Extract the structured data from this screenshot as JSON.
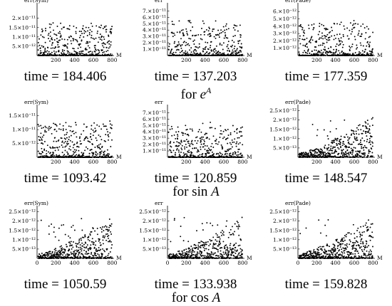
{
  "rows": [
    {
      "caption": {
        "prefix": "for ",
        "func": "e",
        "sup": "A"
      },
      "times": [
        "time = 184.406",
        "time = 137.203",
        "time = 177.359"
      ]
    },
    {
      "caption": {
        "prefix": "for  sin ",
        "func": "A",
        "sup": ""
      },
      "times": [
        "time = 1093.42",
        "time = 120.859",
        "time = 148.547"
      ]
    },
    {
      "caption": {
        "prefix": "for  cos ",
        "func": "A",
        "sup": ""
      },
      "times": [
        "time = 1050.59",
        "time = 133.938",
        "time = 159.828"
      ]
    }
  ],
  "chart_data": [
    {
      "type": "scatter",
      "ylabel": "err(Sym)",
      "xlabel": "M",
      "xlim": [
        0,
        820
      ],
      "xticks": [
        "200",
        "400",
        "600",
        "800"
      ],
      "ylim": [
        0,
        2.6e-11
      ],
      "yticks": [
        {
          "v": 5e-12,
          "label": "5.×10⁻¹²"
        },
        {
          "v": 1e-11,
          "label": "1.×10⁻¹¹"
        },
        {
          "v": 1.5e-11,
          "label": "1.5×10⁻¹¹"
        },
        {
          "v": 2e-11,
          "label": "2.×10⁻¹¹"
        }
      ],
      "pattern": "flat",
      "scale": 1.6e-11,
      "seed": 11
    },
    {
      "type": "scatter",
      "ylabel": "err",
      "xlabel": "M",
      "xlim": [
        0,
        820
      ],
      "xticks": [
        "200",
        "400",
        "600",
        "800"
      ],
      "ylim": [
        0,
        7.6e-11
      ],
      "yticks": [
        {
          "v": 1e-11,
          "label": "1.×10⁻¹¹"
        },
        {
          "v": 2e-11,
          "label": "2.×10⁻¹¹"
        },
        {
          "v": 3e-11,
          "label": "3.×10⁻¹¹"
        },
        {
          "v": 4e-11,
          "label": "4.×10⁻¹¹"
        },
        {
          "v": 5e-11,
          "label": "5.×10⁻¹¹"
        },
        {
          "v": 6e-11,
          "label": "6.×10⁻¹¹"
        },
        {
          "v": 7e-11,
          "label": "7.×10⁻¹¹"
        }
      ],
      "pattern": "flat",
      "scale": 5e-11,
      "seed": 23
    },
    {
      "type": "scatter",
      "ylabel": "err(Pade)",
      "xlabel": "M",
      "xlim": [
        0,
        820
      ],
      "xticks": [
        "200",
        "400",
        "600",
        "800"
      ],
      "ylim": [
        0,
        6.6e-12
      ],
      "yticks": [
        {
          "v": 1e-12,
          "label": "1.×10⁻¹²"
        },
        {
          "v": 2e-12,
          "label": "2.×10⁻¹²"
        },
        {
          "v": 3e-12,
          "label": "3.×10⁻¹²"
        },
        {
          "v": 4e-12,
          "label": "4.×10⁻¹²"
        },
        {
          "v": 5e-12,
          "label": "5.×10⁻¹²"
        },
        {
          "v": 6e-12,
          "label": "6.×10⁻¹²"
        }
      ],
      "pattern": "flat",
      "scale": 4.5e-12,
      "seed": 37
    },
    {
      "type": "scatter",
      "ylabel": "err(Sym)",
      "xlabel": "M",
      "xlim": [
        0,
        820
      ],
      "xticks": [
        "200",
        "400",
        "600",
        "800"
      ],
      "ylim": [
        0,
        1.75e-11
      ],
      "yticks": [
        {
          "v": 5e-12,
          "label": "5.×10⁻¹²"
        },
        {
          "v": 1e-11,
          "label": "1.×10⁻¹¹"
        },
        {
          "v": 1.5e-11,
          "label": "1.5×10⁻¹¹"
        }
      ],
      "pattern": "flat",
      "scale": 1.2e-11,
      "seed": 41
    },
    {
      "type": "scatter",
      "ylabel": "err",
      "xlabel": "M",
      "xlim": [
        0,
        820
      ],
      "xticks": [
        "200",
        "400",
        "600",
        "800"
      ],
      "ylim": [
        0,
        7.6e-11
      ],
      "yticks": [
        {
          "v": 1e-11,
          "label": "1.×10⁻¹¹"
        },
        {
          "v": 2e-11,
          "label": "2.×10⁻¹¹"
        },
        {
          "v": 3e-11,
          "label": "3.×10⁻¹¹"
        },
        {
          "v": 4e-11,
          "label": "4.×10⁻¹¹"
        },
        {
          "v": 5e-11,
          "label": "5.×10⁻¹¹"
        },
        {
          "v": 6e-11,
          "label": "6.×10⁻¹¹"
        },
        {
          "v": 7e-11,
          "label": "7.×10⁻¹¹"
        }
      ],
      "pattern": "flat",
      "scale": 5e-11,
      "seed": 53
    },
    {
      "type": "scatter",
      "ylabel": "err(Pade)",
      "xlabel": "M",
      "xlim": [
        0,
        820
      ],
      "xticks": [
        "200",
        "400",
        "600",
        "800"
      ],
      "ylim": [
        0,
        2.6e-12
      ],
      "yticks": [
        {
          "v": 5e-13,
          "label": "5.×10⁻¹³"
        },
        {
          "v": 1e-12,
          "label": "1.×10⁻¹²"
        },
        {
          "v": 1.5e-12,
          "label": "1.5×10⁻¹²"
        },
        {
          "v": 2e-12,
          "label": "2.×10⁻¹²"
        },
        {
          "v": 2.5e-12,
          "label": "2.5×10⁻¹²"
        }
      ],
      "pattern": "growing",
      "scale": 2.2e-12,
      "seed": 61
    },
    {
      "type": "scatter",
      "ylabel": "err(Sym)",
      "xlabel": "M",
      "xlim": [
        0,
        820
      ],
      "xticks": [
        "0",
        "200",
        "400",
        "600",
        "800"
      ],
      "ylim": [
        0,
        2.6e-12
      ],
      "yticks": [
        {
          "v": 5e-13,
          "label": "5.×10⁻¹³"
        },
        {
          "v": 1e-12,
          "label": "1.×10⁻¹²"
        },
        {
          "v": 1.5e-12,
          "label": "1.5×10⁻¹²"
        },
        {
          "v": 2e-12,
          "label": "2.×10⁻¹²"
        },
        {
          "v": 2.5e-12,
          "label": "2.5×10⁻¹²"
        }
      ],
      "pattern": "growing",
      "scale": 2.2e-12,
      "seed": 71
    },
    {
      "type": "scatter",
      "ylabel": "err",
      "xlabel": "M",
      "xlim": [
        0,
        820
      ],
      "xticks": [
        "0",
        "200",
        "400",
        "600",
        "800"
      ],
      "ylim": [
        0,
        2.6e-12
      ],
      "yticks": [
        {
          "v": 5e-13,
          "label": "5.×10⁻¹³"
        },
        {
          "v": 1e-12,
          "label": "1.×10⁻¹²"
        },
        {
          "v": 1.5e-12,
          "label": "1.5×10⁻¹²"
        },
        {
          "v": 2e-12,
          "label": "2.×10⁻¹²"
        },
        {
          "v": 2.5e-12,
          "label": "2.5×10⁻¹²"
        }
      ],
      "pattern": "growing",
      "scale": 2.2e-12,
      "seed": 83
    },
    {
      "type": "scatter",
      "ylabel": "err(Pade)",
      "xlabel": "M",
      "xlim": [
        0,
        820
      ],
      "xticks": [
        "0",
        "200",
        "400",
        "600",
        "800"
      ],
      "ylim": [
        0,
        2.6e-12
      ],
      "yticks": [
        {
          "v": 5e-13,
          "label": "5.×10⁻¹³"
        },
        {
          "v": 1e-12,
          "label": "1.×10⁻¹²"
        },
        {
          "v": 1.5e-12,
          "label": "1.5×10⁻¹²"
        },
        {
          "v": 2e-12,
          "label": "2.×10⁻¹²"
        },
        {
          "v": 2.5e-12,
          "label": "2.5×10⁻¹²"
        }
      ],
      "pattern": "growing",
      "scale": 2.2e-12,
      "seed": 97
    }
  ]
}
